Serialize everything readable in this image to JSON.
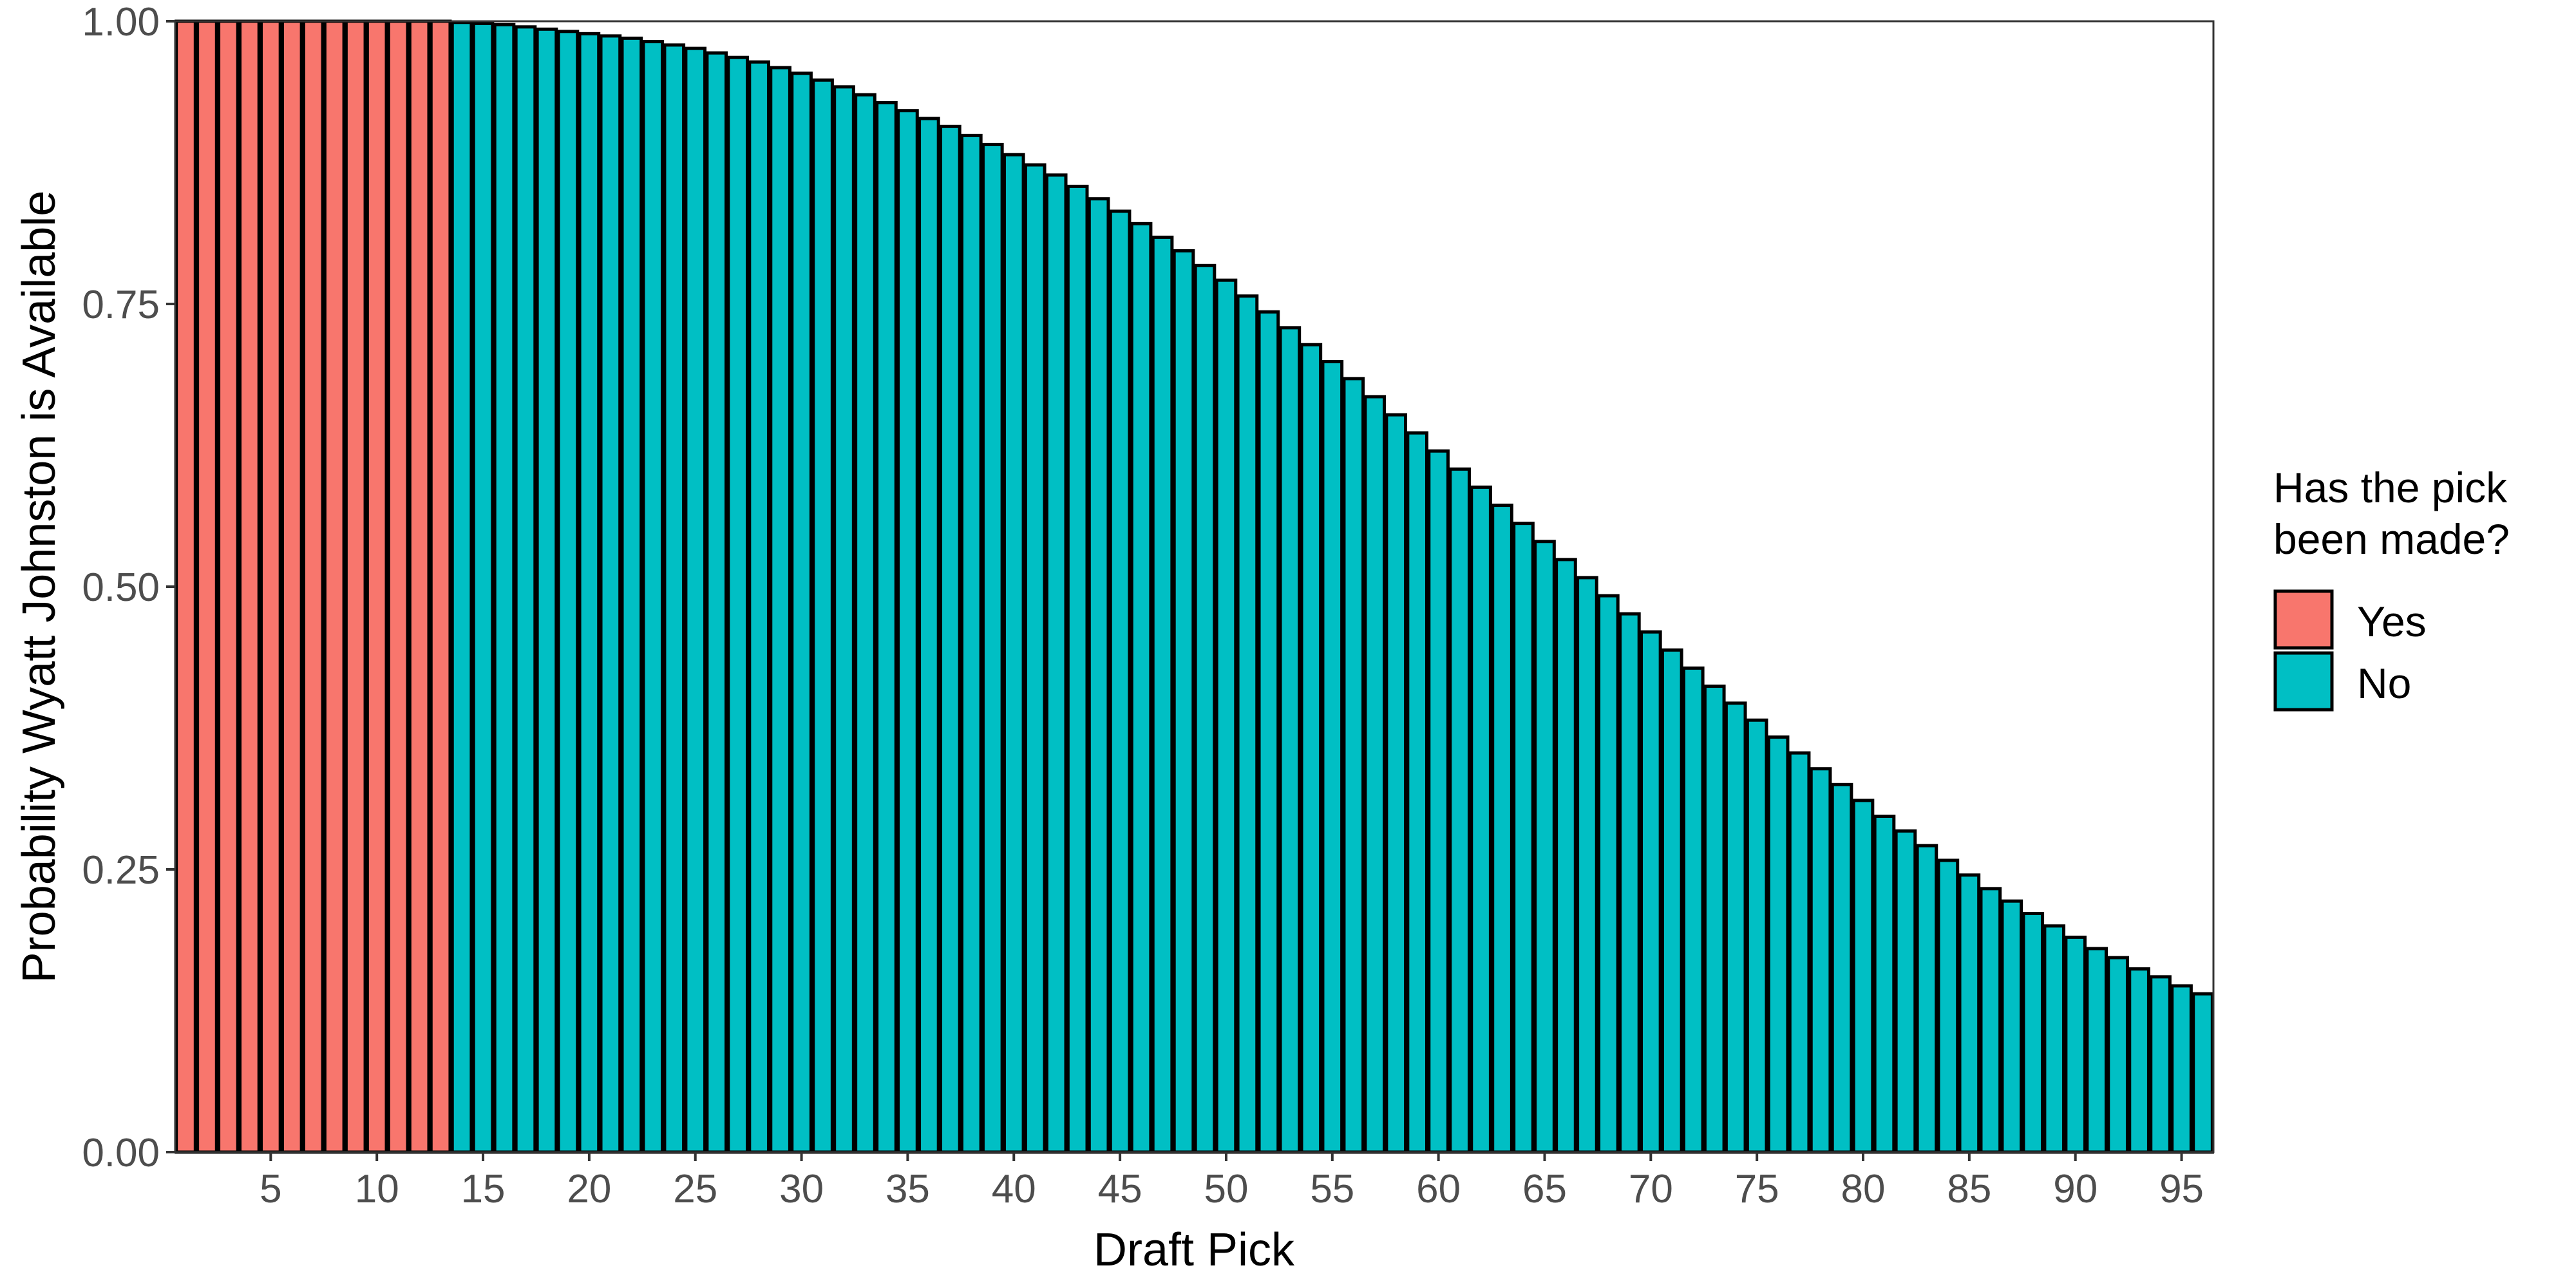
{
  "chart_data": {
    "type": "bar",
    "title": "",
    "xlabel": "Draft Pick",
    "ylabel": "Probability Wyatt Johnston is Available",
    "xlim": [
      0.5,
      96.5
    ],
    "ylim": [
      0,
      1
    ],
    "yticks": [
      "0.00",
      "0.25",
      "0.50",
      "0.75",
      "1.00"
    ],
    "xticks": [
      5,
      10,
      15,
      20,
      25,
      30,
      35,
      40,
      45,
      50,
      55,
      60,
      65,
      70,
      75,
      80,
      85,
      90,
      95
    ],
    "grid": false,
    "legend": {
      "title_lines": [
        "Has the pick",
        "been made?"
      ],
      "placement": "right",
      "entries": [
        {
          "label": "Yes",
          "color": "#F8766D"
        },
        {
          "label": "No",
          "color": "#00BFC4"
        }
      ]
    },
    "colors": {
      "Yes": "#F8766D",
      "No": "#00BFC4"
    },
    "x": [
      1,
      2,
      3,
      4,
      5,
      6,
      7,
      8,
      9,
      10,
      11,
      12,
      13,
      14,
      15,
      16,
      17,
      18,
      19,
      20,
      21,
      22,
      23,
      24,
      25,
      26,
      27,
      28,
      29,
      30,
      31,
      32,
      33,
      34,
      35,
      36,
      37,
      38,
      39,
      40,
      41,
      42,
      43,
      44,
      45,
      46,
      47,
      48,
      49,
      50,
      51,
      52,
      53,
      54,
      55,
      56,
      57,
      58,
      59,
      60,
      61,
      62,
      63,
      64,
      65,
      66,
      67,
      68,
      69,
      70,
      71,
      72,
      73,
      74,
      75,
      76,
      77,
      78,
      79,
      80,
      81,
      82,
      83,
      84,
      85,
      86,
      87,
      88,
      89,
      90,
      91,
      92,
      93,
      94,
      95,
      96
    ],
    "values": [
      1,
      1,
      1,
      1,
      1,
      1,
      1,
      1,
      1,
      1,
      1,
      1,
      1,
      0.999,
      0.998,
      0.997,
      0.995,
      0.993,
      0.991,
      0.989,
      0.987,
      0.985,
      0.982,
      0.979,
      0.976,
      0.972,
      0.968,
      0.964,
      0.959,
      0.954,
      0.948,
      0.942,
      0.935,
      0.928,
      0.921,
      0.914,
      0.907,
      0.899,
      0.891,
      0.882,
      0.873,
      0.864,
      0.854,
      0.843,
      0.832,
      0.821,
      0.809,
      0.797,
      0.784,
      0.771,
      0.757,
      0.743,
      0.729,
      0.714,
      0.699,
      0.684,
      0.668,
      0.652,
      0.636,
      0.62,
      0.604,
      0.588,
      0.572,
      0.556,
      0.54,
      0.524,
      0.508,
      0.492,
      0.476,
      0.46,
      0.444,
      0.428,
      0.412,
      0.397,
      0.382,
      0.367,
      0.353,
      0.339,
      0.325,
      0.311,
      0.297,
      0.284,
      0.271,
      0.258,
      0.245,
      0.233,
      0.222,
      0.211,
      0.2,
      0.19,
      0.18,
      0.172,
      0.162,
      0.155,
      0.147,
      0.14
    ],
    "made": [
      "Yes",
      "Yes",
      "Yes",
      "Yes",
      "Yes",
      "Yes",
      "Yes",
      "Yes",
      "Yes",
      "Yes",
      "Yes",
      "Yes",
      "Yes",
      "No",
      "No",
      "No",
      "No",
      "No",
      "No",
      "No",
      "No",
      "No",
      "No",
      "No",
      "No",
      "No",
      "No",
      "No",
      "No",
      "No",
      "No",
      "No",
      "No",
      "No",
      "No",
      "No",
      "No",
      "No",
      "No",
      "No",
      "No",
      "No",
      "No",
      "No",
      "No",
      "No",
      "No",
      "No",
      "No",
      "No",
      "No",
      "No",
      "No",
      "No",
      "No",
      "No",
      "No",
      "No",
      "No",
      "No",
      "No",
      "No",
      "No",
      "No",
      "No",
      "No",
      "No",
      "No",
      "No",
      "No",
      "No",
      "No",
      "No",
      "No",
      "No",
      "No",
      "No",
      "No",
      "No",
      "No",
      "No",
      "No",
      "No",
      "No",
      "No",
      "No",
      "No",
      "No",
      "No",
      "No",
      "No",
      "No",
      "No",
      "No",
      "No",
      "No"
    ]
  }
}
